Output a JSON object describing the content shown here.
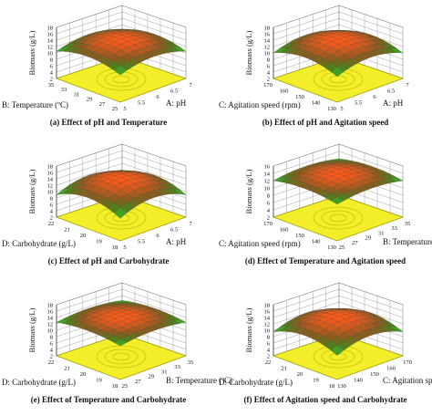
{
  "figure": {
    "panels": [
      {
        "caption": "(a) Effect of pH and Temperature",
        "zlabel": "Biomass (g/L)",
        "zticks": [
          "2",
          "4",
          "6",
          "8",
          "10",
          "12",
          "14",
          "16",
          "18"
        ],
        "left_label": "B: Temperature (ºC)",
        "left_ticks": [
          "35",
          "33",
          "31",
          "29",
          "27",
          "25"
        ],
        "right_label": "A: pH",
        "right_ticks": [
          "5",
          "5.5",
          "6",
          "6.5",
          "7"
        ]
      },
      {
        "caption": "(b) Effect of pH and Agitation speed",
        "zlabel": "Biomass (g/L)",
        "zticks": [
          "2",
          "4",
          "6",
          "8",
          "10",
          "12",
          "14",
          "16",
          "18"
        ],
        "left_label": "C: Agitation speed (rpm)",
        "left_ticks": [
          "170",
          "160",
          "150",
          "140",
          "130"
        ],
        "right_label": "A: pH",
        "right_ticks": [
          "5",
          "5.5",
          "6",
          "6.5",
          "7"
        ]
      },
      {
        "caption": "(c) Effect of pH and Carbohydrate",
        "zlabel": "Biomass (g/L)",
        "zticks": [
          "2",
          "4",
          "6",
          "8",
          "10",
          "12",
          "14",
          "16",
          "18"
        ],
        "left_label": "D: Carbohydrate (g/L)",
        "left_ticks": [
          "22",
          "21",
          "20",
          "19",
          "18"
        ],
        "right_label": "A: pH",
        "right_ticks": [
          "5",
          "5.5",
          "6",
          "6.5",
          "7"
        ]
      },
      {
        "caption": "(d) Effect of Temperature and Agitation speed",
        "zlabel": "Biomass (g/L)",
        "zticks": [
          "2",
          "4",
          "6",
          "8",
          "10",
          "12",
          "14",
          "16"
        ],
        "left_label": "C: Agitation speed (rpm)",
        "left_ticks": [
          "170",
          "160",
          "150",
          "140",
          "130"
        ],
        "right_label": "B: Temperature (ºC)",
        "right_ticks": [
          "25",
          "27",
          "29",
          "31",
          "33",
          "35"
        ]
      },
      {
        "caption": "(e) Effect of Temperature and Carbohydrate",
        "zlabel": "Biomass (g/L)",
        "zticks": [
          "2",
          "4",
          "6",
          "8",
          "10",
          "12",
          "14",
          "16",
          "18"
        ],
        "left_label": "D: Carbohydrate (g/L)",
        "left_ticks": [
          "22",
          "21",
          "20",
          "19",
          "18"
        ],
        "right_label": "B: Temperature (ºC)",
        "right_ticks": [
          "25",
          "27",
          "29",
          "31",
          "33",
          "35"
        ]
      },
      {
        "caption": "(f) Effect of Agitation speed and Carbohydrate",
        "zlabel": "Biomass (g/L)",
        "zticks": [
          "2",
          "4",
          "6",
          "8",
          "10",
          "12",
          "14",
          "16",
          "18"
        ],
        "left_label": "D: Carbohydrate (g/L)",
        "left_ticks": [
          "22",
          "21",
          "20",
          "19",
          "18"
        ],
        "right_label": "C: Agitation speed (rpm)",
        "right_ticks": [
          "130",
          "140",
          "150",
          "160",
          "170"
        ]
      }
    ]
  },
  "chart_data": [
    {
      "type": "surface",
      "title": "(a) Effect of pH and Temperature",
      "zlabel": "Biomass (g/L)",
      "xlabel": "A: pH",
      "ylabel": "B: Temperature (ºC)",
      "x_range": [
        5,
        7
      ],
      "y_range": [
        25,
        35
      ],
      "z_range": [
        2,
        18
      ],
      "peak": {
        "x": 6,
        "y": 30,
        "z": 14.5
      },
      "edge_z": 10.5
    },
    {
      "type": "surface",
      "title": "(b) Effect of pH and Agitation speed",
      "zlabel": "Biomass (g/L)",
      "xlabel": "A: pH",
      "ylabel": "C: Agitation speed (rpm)",
      "x_range": [
        5,
        7
      ],
      "y_range": [
        130,
        170
      ],
      "z_range": [
        2,
        18
      ],
      "peak": {
        "x": 6,
        "y": 150,
        "z": 14.5
      },
      "edge_z": 10
    },
    {
      "type": "surface",
      "title": "(c) Effect of pH and Carbohydrate",
      "zlabel": "Biomass (g/L)",
      "xlabel": "A: pH",
      "ylabel": "D: Carbohydrate (g/L)",
      "x_range": [
        5,
        7
      ],
      "y_range": [
        18,
        22
      ],
      "z_range": [
        2,
        18
      ],
      "peak": {
        "x": 6,
        "y": 20,
        "z": 14.5
      },
      "edge_z": 9
    },
    {
      "type": "surface",
      "title": "(d) Effect of Temperature and Agitation speed",
      "zlabel": "Biomass (g/L)",
      "xlabel": "B: Temperature (ºC)",
      "ylabel": "C: Agitation speed (rpm)",
      "x_range": [
        25,
        35
      ],
      "y_range": [
        130,
        170
      ],
      "z_range": [
        2,
        16
      ],
      "peak": {
        "x": 30,
        "y": 150,
        "z": 14
      },
      "edge_z": 12
    },
    {
      "type": "surface",
      "title": "(e) Effect of Temperature and Carbohydrate",
      "zlabel": "Biomass (g/L)",
      "xlabel": "B: Temperature (ºC)",
      "ylabel": "D: Carbohydrate (g/L)",
      "x_range": [
        25,
        35
      ],
      "y_range": [
        18,
        22
      ],
      "z_range": [
        2,
        18
      ],
      "peak": {
        "x": 30,
        "y": 20,
        "z": 14.5
      },
      "edge_z": 12.5
    },
    {
      "type": "surface",
      "title": "(f) Effect of Agitation speed and Carbohydrate",
      "zlabel": "Biomass (g/L)",
      "xlabel": "C: Agitation speed (rpm)",
      "ylabel": "D: Carbohydrate (g/L)",
      "x_range": [
        130,
        170
      ],
      "y_range": [
        18,
        22
      ],
      "z_range": [
        2,
        18
      ],
      "peak": {
        "x": 150,
        "y": 20,
        "z": 14.5
      },
      "edge_z": 9.5
    }
  ],
  "colors": {
    "floor": "#f2ee2a",
    "floor_edge": "#9a9600",
    "contour": "#b9b300",
    "grid": "#8a8a8a",
    "surface_top": "#ff5a1a",
    "surface_mid": "#8a5a20",
    "surface_low": "#3e8a1e",
    "surface_base": "#4cd13a"
  }
}
